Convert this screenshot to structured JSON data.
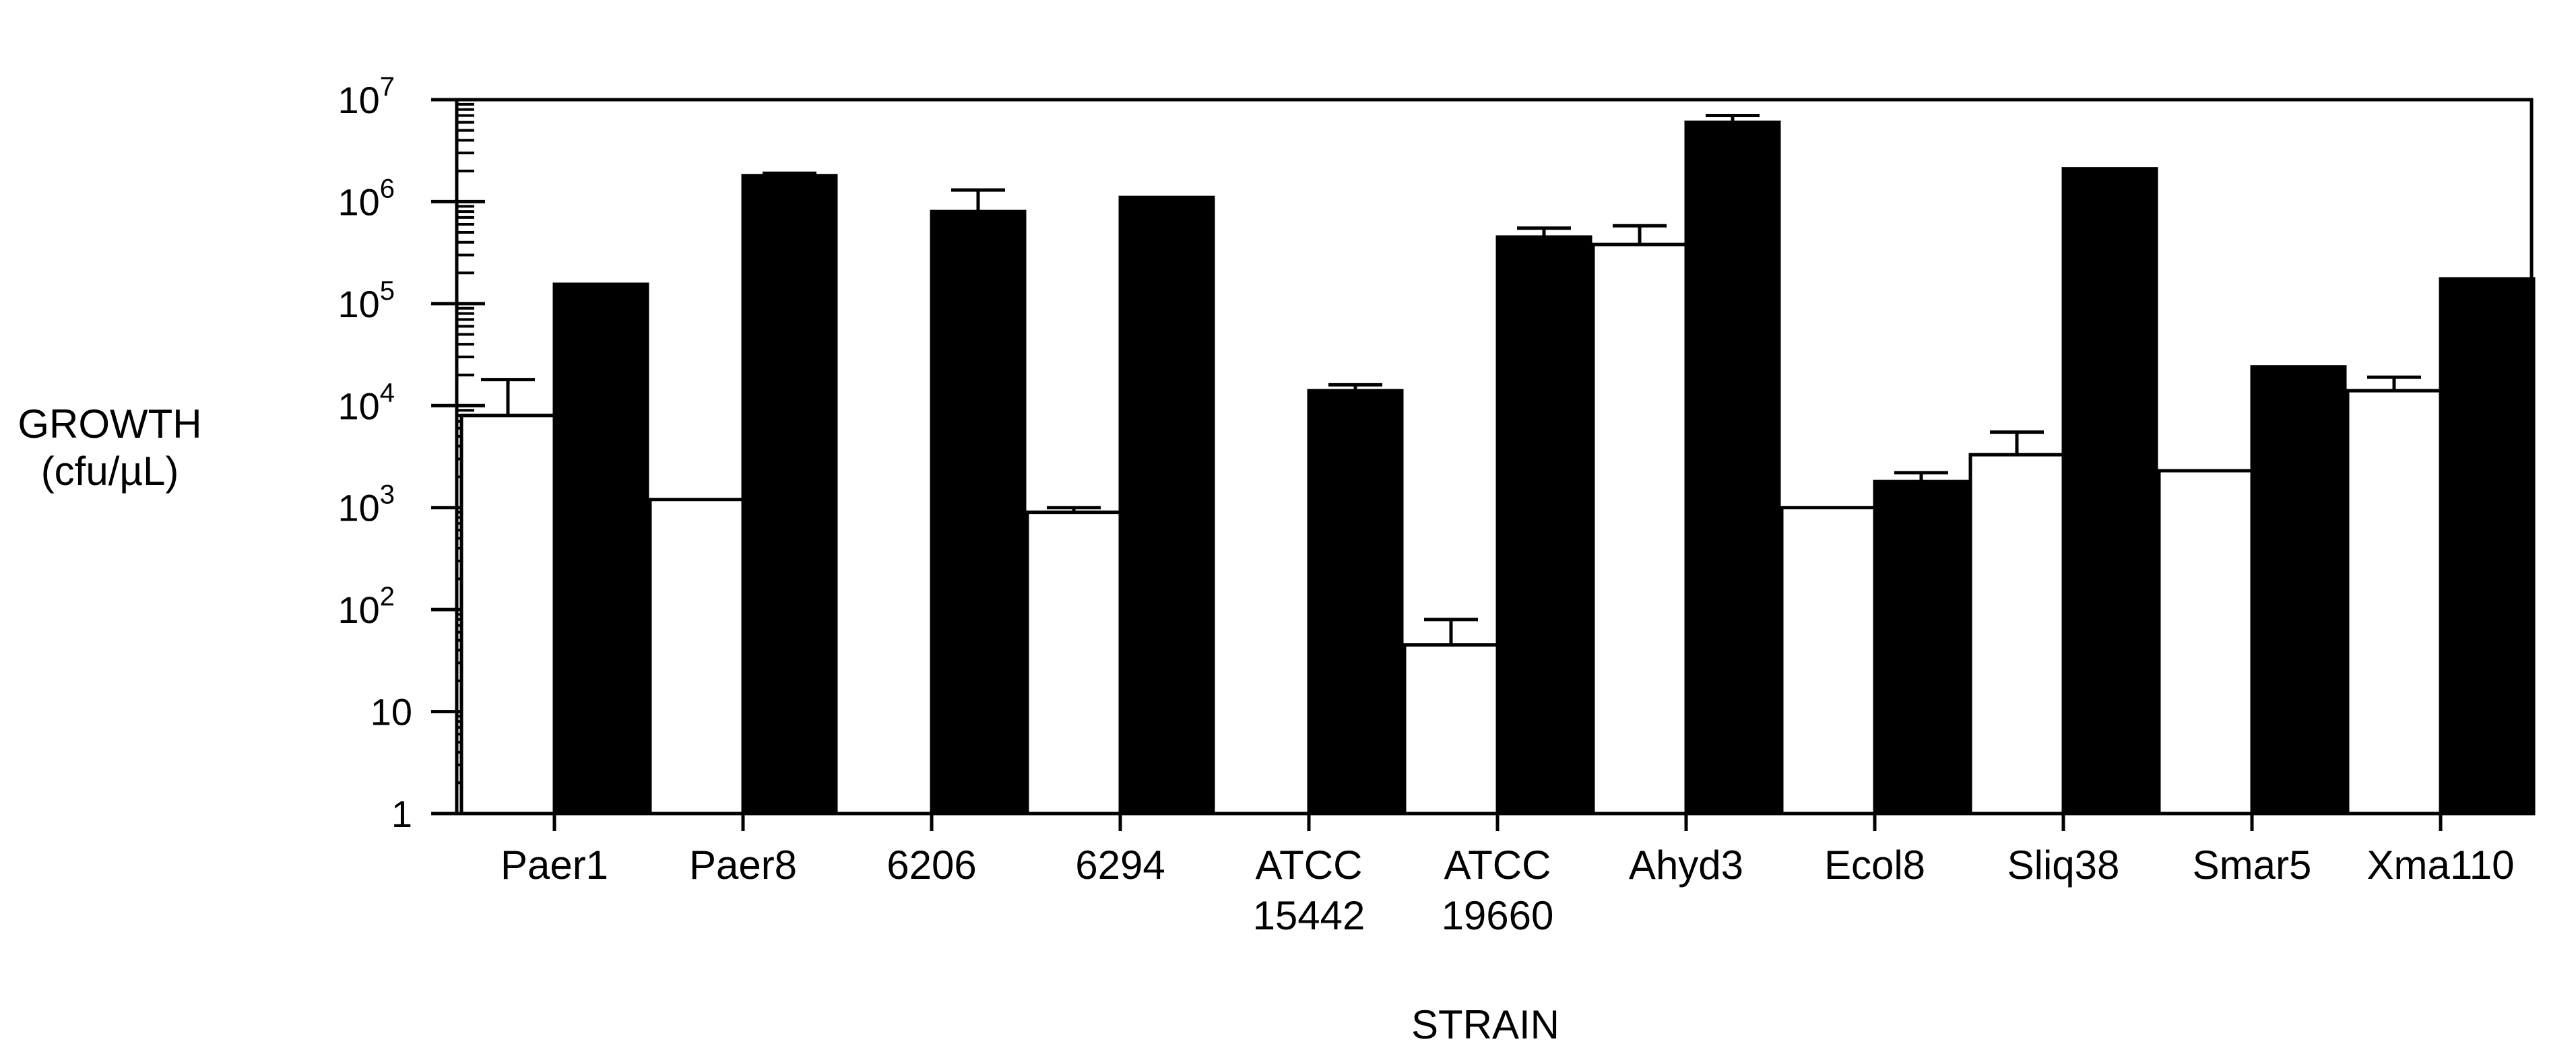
{
  "chart_data": {
    "type": "bar",
    "scale": "log",
    "ylabel_line1": "GROWTH",
    "ylabel_line2": "(cfu/µL)",
    "xlabel": "STRAIN",
    "ylim": [
      1,
      10000000
    ],
    "yticks": [
      {
        "value": 1,
        "base": "1",
        "exp": ""
      },
      {
        "value": 10,
        "base": "10",
        "exp": ""
      },
      {
        "value": 100,
        "base": "10",
        "exp": "2"
      },
      {
        "value": 1000,
        "base": "10",
        "exp": "3"
      },
      {
        "value": 10000,
        "base": "10",
        "exp": "4"
      },
      {
        "value": 100000,
        "base": "10",
        "exp": "5"
      },
      {
        "value": 1000000,
        "base": "10",
        "exp": "6"
      },
      {
        "value": 10000000,
        "base": "10",
        "exp": "7"
      }
    ],
    "categories": [
      {
        "line1": "Paer1",
        "line2": ""
      },
      {
        "line1": "Paer8",
        "line2": ""
      },
      {
        "line1": "6206",
        "line2": ""
      },
      {
        "line1": "6294",
        "line2": ""
      },
      {
        "line1": "ATCC",
        "line2": "15442"
      },
      {
        "line1": "ATCC",
        "line2": "19660"
      },
      {
        "line1": "Ahyd3",
        "line2": ""
      },
      {
        "line1": "Ecol8",
        "line2": ""
      },
      {
        "line1": "Sliq38",
        "line2": ""
      },
      {
        "line1": "Smar5",
        "line2": ""
      },
      {
        "line1": "Xma110",
        "line2": ""
      }
    ],
    "series": [
      {
        "fill": "#ffffff",
        "values": [
          8000,
          1200,
          1,
          900,
          1,
          45,
          380000,
          1000,
          3300,
          2300,
          14000
        ],
        "errors": [
          18000,
          null,
          null,
          1000,
          null,
          80,
          580000,
          null,
          5500,
          null,
          19000
        ]
      },
      {
        "fill": "#000000",
        "values": [
          155000,
          1800000,
          800000,
          1100000,
          14000,
          450000,
          6000000,
          1800,
          2100000,
          24000,
          175000
        ],
        "errors": [
          null,
          1900000,
          1300000,
          null,
          16000,
          550000,
          7000000,
          2200,
          null,
          null,
          null
        ]
      }
    ]
  }
}
